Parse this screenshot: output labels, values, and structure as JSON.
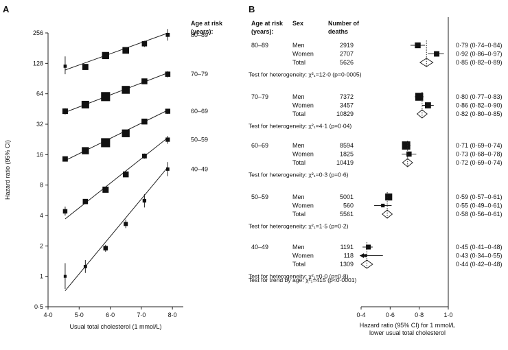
{
  "chart_data": [
    {
      "panel": "A",
      "type": "scatter",
      "xlabel": "Usual total cholesterol (1 mmol/L)",
      "ylabel": "Hazard ratio (95% CI)",
      "x_ticks": [
        "4·0",
        "5·0",
        "6·0",
        "7·0",
        "8·0"
      ],
      "x_tick_values": [
        4,
        5,
        6,
        7,
        8
      ],
      "xlim": [
        4,
        8.35
      ],
      "y_ticks": [
        "0·5",
        "1",
        "2",
        "4",
        "8",
        "16",
        "32",
        "64",
        "128",
        "256"
      ],
      "y_tick_values": [
        0.5,
        1,
        2,
        4,
        8,
        16,
        32,
        64,
        128,
        256
      ],
      "ylim": [
        0.5,
        256
      ],
      "yscale": "log2",
      "legend_title": "Age at risk (years):",
      "series": [
        {
          "name": "80–89",
          "points": [
            {
              "x": 4.55,
              "y": 120,
              "lo": 100,
              "hi": 150,
              "w": 0.7
            },
            {
              "x": 5.2,
              "y": 118,
              "lo": 112,
              "hi": 124,
              "w": 2.5
            },
            {
              "x": 5.85,
              "y": 153,
              "lo": 145,
              "hi": 161,
              "w": 3.2
            },
            {
              "x": 6.5,
              "y": 172,
              "lo": 164,
              "hi": 180,
              "w": 2.9
            },
            {
              "x": 7.1,
              "y": 200,
              "lo": 186,
              "hi": 214,
              "w": 2.0
            },
            {
              "x": 7.85,
              "y": 245,
              "lo": 215,
              "hi": 280,
              "w": 1.2
            }
          ],
          "fit": {
            "x0": 4.55,
            "y0": 110,
            "x1": 7.85,
            "y1": 255
          }
        },
        {
          "name": "70–79",
          "points": [
            {
              "x": 4.55,
              "y": 43,
              "lo": 40,
              "hi": 46,
              "w": 2.2
            },
            {
              "x": 5.2,
              "y": 50,
              "lo": 47.5,
              "hi": 52.5,
              "w": 3.5
            },
            {
              "x": 5.85,
              "y": 60,
              "lo": 57,
              "hi": 63,
              "w": 4.4
            },
            {
              "x": 6.5,
              "y": 70,
              "lo": 67,
              "hi": 73,
              "w": 3.7
            },
            {
              "x": 7.1,
              "y": 85,
              "lo": 80,
              "hi": 90,
              "w": 2.4
            },
            {
              "x": 7.85,
              "y": 100,
              "lo": 93,
              "hi": 107,
              "w": 2.0
            }
          ],
          "fit": {
            "x0": 4.55,
            "y0": 42,
            "x1": 7.85,
            "y1": 103
          }
        },
        {
          "name": "60–69",
          "points": [
            {
              "x": 4.55,
              "y": 14.5,
              "lo": 13.8,
              "hi": 15.3,
              "w": 2.1
            },
            {
              "x": 5.2,
              "y": 17.5,
              "lo": 16.8,
              "hi": 18.2,
              "w": 3.2
            },
            {
              "x": 5.85,
              "y": 21,
              "lo": 20.3,
              "hi": 21.7,
              "w": 4.4
            },
            {
              "x": 6.5,
              "y": 26,
              "lo": 25,
              "hi": 27,
              "w": 3.6
            },
            {
              "x": 7.1,
              "y": 34,
              "lo": 32.5,
              "hi": 35.5,
              "w": 2.4
            },
            {
              "x": 7.85,
              "y": 43,
              "lo": 40.5,
              "hi": 45.5,
              "w": 1.9
            }
          ],
          "fit": {
            "x0": 4.55,
            "y0": 14,
            "x1": 7.85,
            "y1": 44
          }
        },
        {
          "name": "50–59",
          "points": [
            {
              "x": 4.55,
              "y": 4.4,
              "lo": 4,
              "hi": 4.9,
              "w": 1.5
            },
            {
              "x": 5.2,
              "y": 5.5,
              "lo": 5.25,
              "hi": 5.75,
              "w": 2.0
            },
            {
              "x": 5.85,
              "y": 7.2,
              "lo": 6.9,
              "hi": 7.5,
              "w": 2.6
            },
            {
              "x": 6.5,
              "y": 10.2,
              "lo": 9.7,
              "hi": 10.7,
              "w": 2.4
            },
            {
              "x": 7.1,
              "y": 15.5,
              "lo": 14.6,
              "hi": 16.4,
              "w": 1.7
            },
            {
              "x": 7.85,
              "y": 22.5,
              "lo": 20.5,
              "hi": 24.5,
              "w": 1.4
            }
          ],
          "fit": {
            "x0": 4.55,
            "y0": 3.7,
            "x1": 7.85,
            "y1": 23.5
          }
        },
        {
          "name": "40–49",
          "points": [
            {
              "x": 4.55,
              "y": 1.0,
              "lo": 0.75,
              "hi": 1.35,
              "w": 0.5
            },
            {
              "x": 5.2,
              "y": 1.25,
              "lo": 1.08,
              "hi": 1.45,
              "w": 0.8
            },
            {
              "x": 5.85,
              "y": 1.9,
              "lo": 1.75,
              "hi": 2.05,
              "w": 1.5
            },
            {
              "x": 6.5,
              "y": 3.3,
              "lo": 3.0,
              "hi": 3.65,
              "w": 1.3
            },
            {
              "x": 7.1,
              "y": 5.6,
              "lo": 4.8,
              "hi": 6.5,
              "w": 1.0
            },
            {
              "x": 7.85,
              "y": 11.5,
              "lo": 9.8,
              "hi": 13.5,
              "w": 0.8
            }
          ],
          "fit": {
            "x0": 4.55,
            "y0": 0.72,
            "x1": 7.85,
            "y1": 12
          }
        }
      ]
    },
    {
      "panel": "B",
      "type": "forest",
      "xlabel_line1": "Hazard ratio (95% CI) for 1 mmol/L",
      "xlabel_line2": "lower usual total cholesterol",
      "x_ticks": [
        "0·4",
        "0·6",
        "0·8",
        "1·0"
      ],
      "x_tick_values": [
        0.4,
        0.6,
        0.8,
        1.0
      ],
      "xlim": [
        0.4,
        1.0
      ],
      "reference_line": 1.0,
      "header": {
        "age_line1": "Age at risk",
        "age_line2": "(years):",
        "sex": "Sex",
        "deaths_line1": "Number of",
        "deaths_line2": "deaths"
      },
      "groups": [
        {
          "age": "80–89",
          "heterogeneity": "Test for heterogeneity: χ²₁=12·0 (p=0·0005)",
          "rows": [
            {
              "sex": "Men",
              "deaths": "2919",
              "hr": 0.79,
              "lo": 0.74,
              "hi": 0.84,
              "label": "0·79 (0·74–0·84)",
              "w": 1.2
            },
            {
              "sex": "Women",
              "deaths": "2707",
              "hr": 0.92,
              "lo": 0.86,
              "hi": 0.97,
              "label": "0·92 (0·86–0·97)",
              "w": 1.1
            },
            {
              "sex": "Total",
              "deaths": "5626",
              "hr": 0.85,
              "lo": 0.82,
              "hi": 0.89,
              "label": "0·85 (0·82–0·89)",
              "w": 0
            }
          ]
        },
        {
          "age": "70–79",
          "heterogeneity": "Test for heterogeneity: χ²₁=4·1 (p=0·04)",
          "rows": [
            {
              "sex": "Men",
              "deaths": "7372",
              "hr": 0.8,
              "lo": 0.77,
              "hi": 0.83,
              "label": "0·80 (0·77–0·83)",
              "w": 1.9
            },
            {
              "sex": "Women",
              "deaths": "3457",
              "hr": 0.86,
              "lo": 0.82,
              "hi": 0.9,
              "label": "0·86 (0·82–0·90)",
              "w": 1.3
            },
            {
              "sex": "Total",
              "deaths": "10829",
              "hr": 0.82,
              "lo": 0.8,
              "hi": 0.85,
              "label": "0·82 (0·80–0·85)",
              "w": 0
            }
          ]
        },
        {
          "age": "60–69",
          "heterogeneity": "Test for heterogeneity: χ²₁=0·3 (p=0·6)",
          "rows": [
            {
              "sex": "Men",
              "deaths": "8594",
              "hr": 0.71,
              "lo": 0.69,
              "hi": 0.74,
              "label": "0·71 (0·69–0·74)",
              "w": 2.0
            },
            {
              "sex": "Women",
              "deaths": "1825",
              "hr": 0.73,
              "lo": 0.68,
              "hi": 0.78,
              "label": "0·73 (0·68–0·78)",
              "w": 1.0
            },
            {
              "sex": "Total",
              "deaths": "10419",
              "hr": 0.72,
              "lo": 0.69,
              "hi": 0.74,
              "label": "0·72 (0·69–0·74)",
              "w": 0
            }
          ]
        },
        {
          "age": "50–59",
          "heterogeneity": "Test for heterogeneity: χ²₁=1·5 (p=0·2)",
          "rows": [
            {
              "sex": "Men",
              "deaths": "5001",
              "hr": 0.59,
              "lo": 0.57,
              "hi": 0.61,
              "label": "0·59 (0·57–0·61)",
              "w": 1.6
            },
            {
              "sex": "Women",
              "deaths": "560",
              "hr": 0.55,
              "lo": 0.49,
              "hi": 0.61,
              "label": "0·55 (0·49–0·61)",
              "w": 0.5
            },
            {
              "sex": "Total",
              "deaths": "5561",
              "hr": 0.58,
              "lo": 0.56,
              "hi": 0.61,
              "label": "0·58 (0·56–0·61)",
              "w": 0
            }
          ]
        },
        {
          "age": "40–49",
          "heterogeneity": "Test for heterogeneity: χ²₁=0·0 (p=0·8)",
          "rows": [
            {
              "sex": "Men",
              "deaths": "1191",
              "hr": 0.45,
              "lo": 0.41,
              "hi": 0.48,
              "label": "0·45 (0·41–0·48)",
              "w": 0.9
            },
            {
              "sex": "Women",
              "deaths": "118",
              "hr": 0.43,
              "lo": 0.34,
              "hi": 0.55,
              "label": "0·43 (0·34–0·55)",
              "w": 0.3
            },
            {
              "sex": "Total",
              "deaths": "1309",
              "hr": 0.44,
              "lo": 0.42,
              "hi": 0.48,
              "label": "0·44 (0·42–0·48)",
              "w": 0
            }
          ]
        }
      ],
      "trend": "Test for trend by age: χ²₁=415 (p<0·0001)"
    }
  ]
}
